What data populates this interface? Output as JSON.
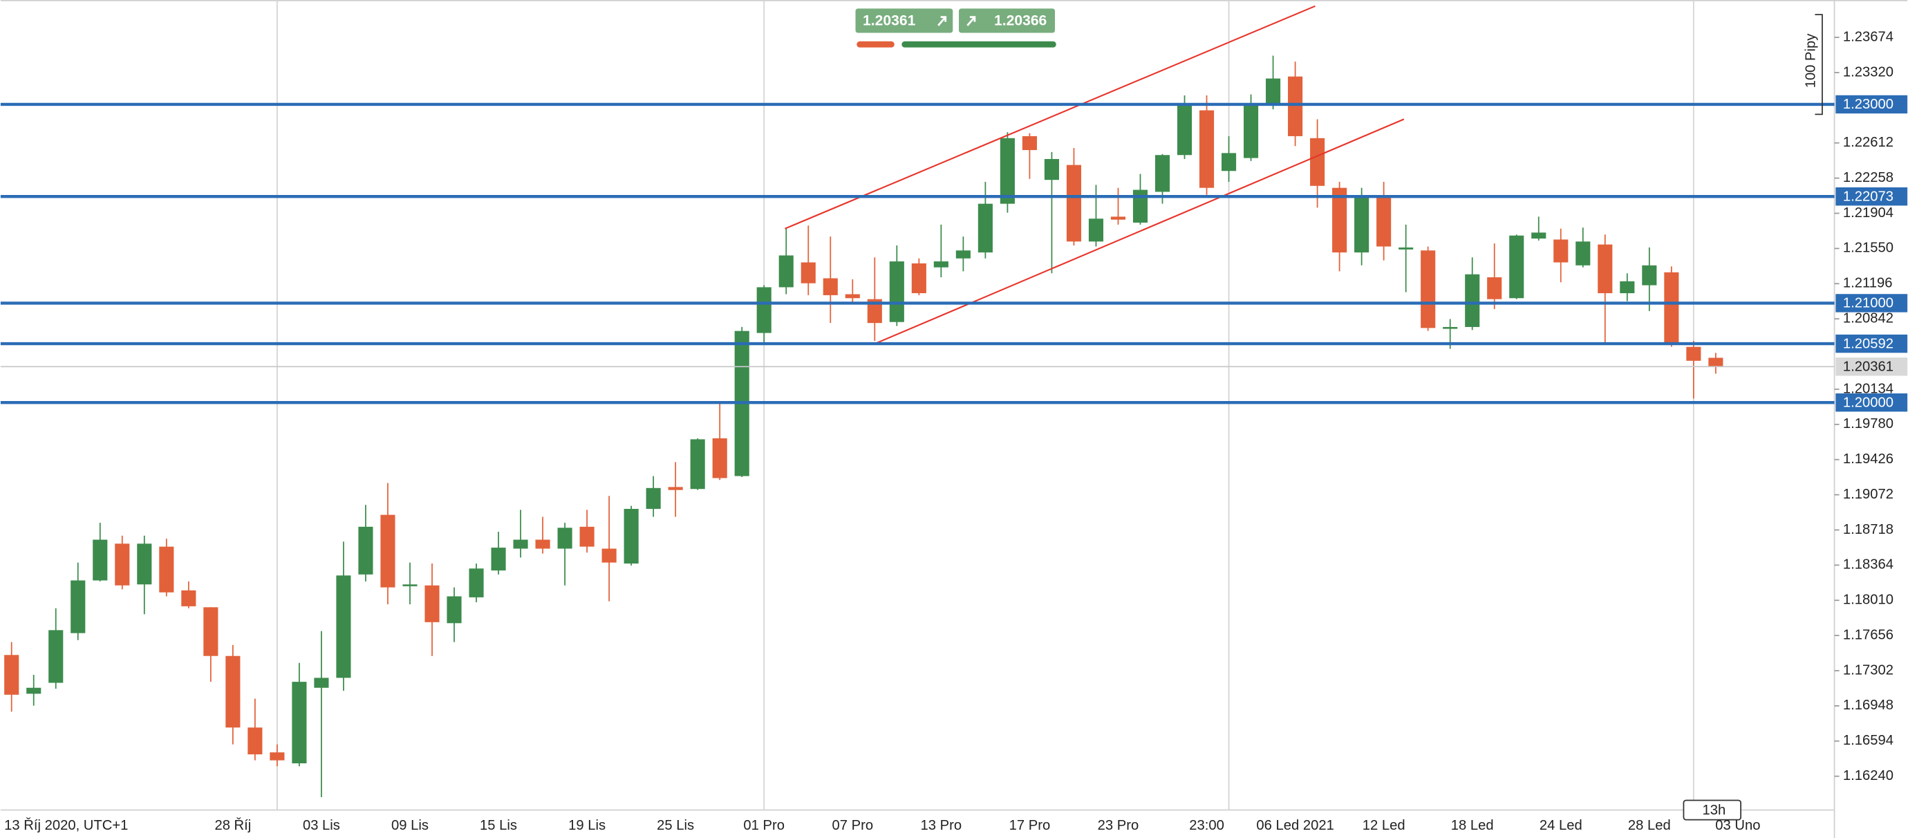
{
  "chart_data": {
    "type": "candlestick",
    "categories": [
      "13 Říj 2020, UTC+1",
      null,
      null,
      null,
      null,
      null,
      null,
      null,
      null,
      null,
      "28 Říj",
      null,
      null,
      null,
      "03 Lis",
      null,
      null,
      null,
      "09 Lis",
      null,
      null,
      null,
      "15 Lis",
      null,
      null,
      null,
      "19 Lis",
      null,
      null,
      null,
      "25 Lis",
      null,
      null,
      null,
      "01 Pro",
      null,
      null,
      null,
      "07 Pro",
      null,
      null,
      null,
      "13 Pro",
      null,
      null,
      null,
      "17 Pro",
      null,
      null,
      null,
      "23 Pro",
      null,
      null,
      null,
      "23:00",
      null,
      null,
      null,
      "06 Led 2021",
      null,
      null,
      null,
      "12 Led",
      null,
      null,
      null,
      "18 Led",
      null,
      null,
      null,
      "24 Led",
      null,
      null,
      null,
      "28 Led",
      null,
      null,
      null,
      "03 Uno"
    ],
    "open": [
      1.1746,
      1.1707,
      1.1718,
      1.1768,
      1.1821,
      1.1858,
      1.1817,
      1.1855,
      1.1811,
      1.1794,
      1.1745,
      1.1673,
      1.1648,
      1.1637,
      1.1713,
      1.1723,
      1.1827,
      1.1887,
      1.1816,
      1.1816,
      1.1778,
      1.1804,
      1.1831,
      1.1853,
      1.1862,
      1.1853,
      1.1875,
      1.1853,
      1.1838,
      1.1893,
      1.1915,
      1.1913,
      1.1964,
      1.1926,
      1.207,
      1.2116,
      1.2141,
      1.2125,
      1.2109,
      1.2104,
      1.2081,
      1.214,
      1.2136,
      1.2145,
      1.2151,
      1.22,
      1.2268,
      1.2224,
      1.2239,
      1.2162,
      1.2187,
      1.2181,
      1.2212,
      1.2249,
      1.2294,
      1.2233,
      1.2246,
      1.2299,
      1.2328,
      1.2266,
      1.2216,
      1.2151,
      1.2206,
      1.2154,
      1.2153,
      1.2075,
      1.2076,
      1.2126,
      1.2105,
      1.2165,
      1.2164,
      1.2138,
      1.2159,
      1.211,
      1.2118,
      1.2131,
      1.2056,
      1.2045,
      null
    ],
    "high": [
      1.1759,
      1.1726,
      1.1793,
      1.1839,
      1.1879,
      1.1866,
      1.1866,
      1.1863,
      1.182,
      1.1794,
      1.1756,
      1.1702,
      1.1656,
      1.1738,
      1.177,
      1.186,
      1.1897,
      1.1919,
      1.1839,
      1.1838,
      1.1814,
      1.1838,
      1.187,
      1.1892,
      1.1885,
      1.1879,
      1.1892,
      1.1906,
      1.1896,
      1.1926,
      1.194,
      1.1964,
      1.2,
      1.2076,
      1.2118,
      1.2176,
      1.2178,
      1.2167,
      1.2124,
      1.2146,
      1.2158,
      1.2145,
      1.2179,
      1.2167,
      1.2222,
      1.2272,
      1.2271,
      1.2252,
      1.2256,
      1.2219,
      1.2216,
      1.223,
      1.225,
      1.2309,
      1.2309,
      1.2268,
      1.231,
      1.2349,
      1.2343,
      1.2285,
      1.2222,
      1.2216,
      1.2222,
      1.2179,
      1.2157,
      1.2084,
      1.2146,
      1.216,
      1.2169,
      1.2187,
      1.2175,
      1.2176,
      1.2169,
      1.213,
      1.2156,
      1.2137,
      1.2062,
      1.205,
      null
    ],
    "low": [
      1.1689,
      1.1695,
      1.1712,
      1.1761,
      1.182,
      1.1812,
      1.1787,
      1.1805,
      1.1793,
      1.1719,
      1.1656,
      1.164,
      1.1634,
      1.1634,
      1.1603,
      1.171,
      1.182,
      1.1797,
      1.1797,
      1.1745,
      1.1759,
      1.1799,
      1.1827,
      1.1844,
      1.1848,
      1.1816,
      1.1849,
      1.18,
      1.1836,
      1.1885,
      1.1885,
      1.1912,
      1.1922,
      1.1925,
      1.2059,
      1.2109,
      1.2108,
      1.208,
      1.2099,
      1.2062,
      1.2077,
      1.2108,
      1.2126,
      1.2132,
      1.2145,
      1.2191,
      1.2225,
      1.213,
      1.2158,
      1.2157,
      1.2179,
      1.2179,
      1.22,
      1.2245,
      1.2209,
      1.2222,
      1.2243,
      1.2295,
      1.2258,
      1.2196,
      1.2132,
      1.2138,
      1.2143,
      1.2111,
      1.2072,
      1.2054,
      1.2073,
      1.2094,
      1.2104,
      1.2163,
      1.2121,
      1.2136,
      1.206,
      1.2102,
      1.2092,
      1.2056,
      1.2004,
      1.2029,
      null
    ],
    "close": [
      1.1706,
      1.1713,
      1.1771,
      1.1821,
      1.1862,
      1.1816,
      1.1858,
      1.1809,
      1.1795,
      1.1745,
      1.1673,
      1.1646,
      1.164,
      1.1719,
      1.1723,
      1.1826,
      1.1875,
      1.1814,
      1.1817,
      1.1779,
      1.1805,
      1.1833,
      1.1854,
      1.1862,
      1.1853,
      1.1874,
      1.1855,
      1.1839,
      1.1893,
      1.1914,
      1.1912,
      1.1963,
      1.1924,
      1.2072,
      1.2116,
      1.2148,
      1.212,
      1.2108,
      1.2105,
      1.208,
      1.2142,
      1.211,
      1.2142,
      1.2153,
      1.22,
      1.2266,
      1.2254,
      1.2245,
      1.2162,
      1.2185,
      1.2184,
      1.2214,
      1.2249,
      1.2299,
      1.2216,
      1.2251,
      1.2299,
      1.2326,
      1.2268,
      1.2218,
      1.2151,
      1.2206,
      1.2157,
      1.2156,
      1.2075,
      1.2076,
      1.2129,
      1.2104,
      1.2168,
      1.2171,
      1.2141,
      1.2162,
      1.211,
      1.2122,
      1.2138,
      1.2059,
      1.2042,
      1.2036,
      null
    ],
    "colors": {
      "up": "#3c8b4c",
      "down": "#e2613a",
      "level": "#2b6cb5"
    },
    "ylim": [
      1.159,
      1.2405
    ],
    "yticks": [
      {
        "value": 1.23674,
        "label": "1.23674"
      },
      {
        "value": 1.2332,
        "label": "1.23320"
      },
      {
        "value": 1.22612,
        "label": "1.22612"
      },
      {
        "value": 1.22258,
        "label": "1.22258"
      },
      {
        "value": 1.21904,
        "label": "1.21904"
      },
      {
        "value": 1.2155,
        "label": "1.21550"
      },
      {
        "value": 1.21196,
        "label": "1.21196"
      },
      {
        "value": 1.20842,
        "label": "1.20842"
      },
      {
        "value": 1.20134,
        "label": "1.20134"
      },
      {
        "value": 1.1978,
        "label": "1.19780"
      },
      {
        "value": 1.19426,
        "label": "1.19426"
      },
      {
        "value": 1.19072,
        "label": "1.19072"
      },
      {
        "value": 1.18718,
        "label": "1.18718"
      },
      {
        "value": 1.18364,
        "label": "1.18364"
      },
      {
        "value": 1.1801,
        "label": "1.18010"
      },
      {
        "value": 1.17656,
        "label": "1.17656"
      },
      {
        "value": 1.17302,
        "label": "1.17302"
      },
      {
        "value": 1.16948,
        "label": "1.16948"
      },
      {
        "value": 1.16594,
        "label": "1.16594"
      },
      {
        "value": 1.1624,
        "label": "1.16240"
      }
    ],
    "levels": [
      {
        "value": 1.23,
        "label": "1.23000"
      },
      {
        "value": 1.22073,
        "label": "1.22073"
      },
      {
        "value": 1.21,
        "label": "1.21000"
      },
      {
        "value": 1.20592,
        "label": "1.20592"
      },
      {
        "value": 1.2,
        "label": "1.20000"
      }
    ],
    "current_price": {
      "value": 1.20361,
      "label": "1.20361"
    },
    "bid": "1.20361",
    "ask": "1.20366",
    "scale_note": "100 Pipy",
    "countdown": "13h"
  }
}
